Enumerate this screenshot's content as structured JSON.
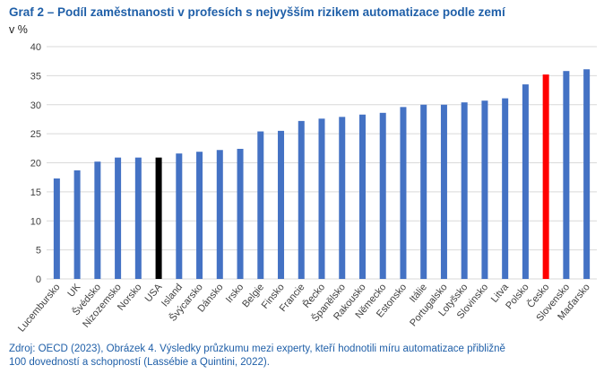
{
  "title": "Graf 2 – Podíl zaměstnanosti v profesích s nejvyšším rizikem automatizace podle zemí",
  "unit": "v %",
  "source_line1": "Zdroj: OECD (2023), Obrázek 4. Výsledky průzkumu mezi experty, kteří hodnotili míru automatizace přibližně",
  "source_line2": "100 dovedností a schopností (Lassébie a Quintini, 2022).",
  "colors": {
    "default": "#4472c4",
    "usa": "#000000",
    "cesko": "#ff0000",
    "grid": "#d9d9d9"
  },
  "chart_data": {
    "type": "bar",
    "title": "Graf 2 – Podíl zaměstnanosti v profesích s nejvyšším rizikem automatizace podle zemí",
    "ylabel": "v %",
    "ylim": [
      0,
      40
    ],
    "yticks": [
      0,
      5,
      10,
      15,
      20,
      25,
      30,
      35,
      40
    ],
    "grid": true,
    "categories": [
      "Lucembursko",
      "UK",
      "Švédsko",
      "Nizozemsko",
      "Norsko",
      "USA",
      "Island",
      "Švýcarsko",
      "Dánsko",
      "Irsko",
      "Belgie",
      "Finsko",
      "Francie",
      "Řecko",
      "Španělsko",
      "Rakousko",
      "Německo",
      "Estonsko",
      "Itálie",
      "Portugalsko",
      "Lotyšsko",
      "Slovinsko",
      "Litva",
      "Polsko",
      "Česko",
      "Slovensko",
      "Maďarsko"
    ],
    "values": [
      17.3,
      18.7,
      20.2,
      20.9,
      20.9,
      20.9,
      21.6,
      21.9,
      22.2,
      22.4,
      25.4,
      25.5,
      27.2,
      27.6,
      27.9,
      28.3,
      28.6,
      29.6,
      30.0,
      30.0,
      30.4,
      30.7,
      31.1,
      33.5,
      35.2,
      35.8,
      36.1
    ],
    "highlight": {
      "USA": "usa",
      "Česko": "cesko"
    }
  }
}
